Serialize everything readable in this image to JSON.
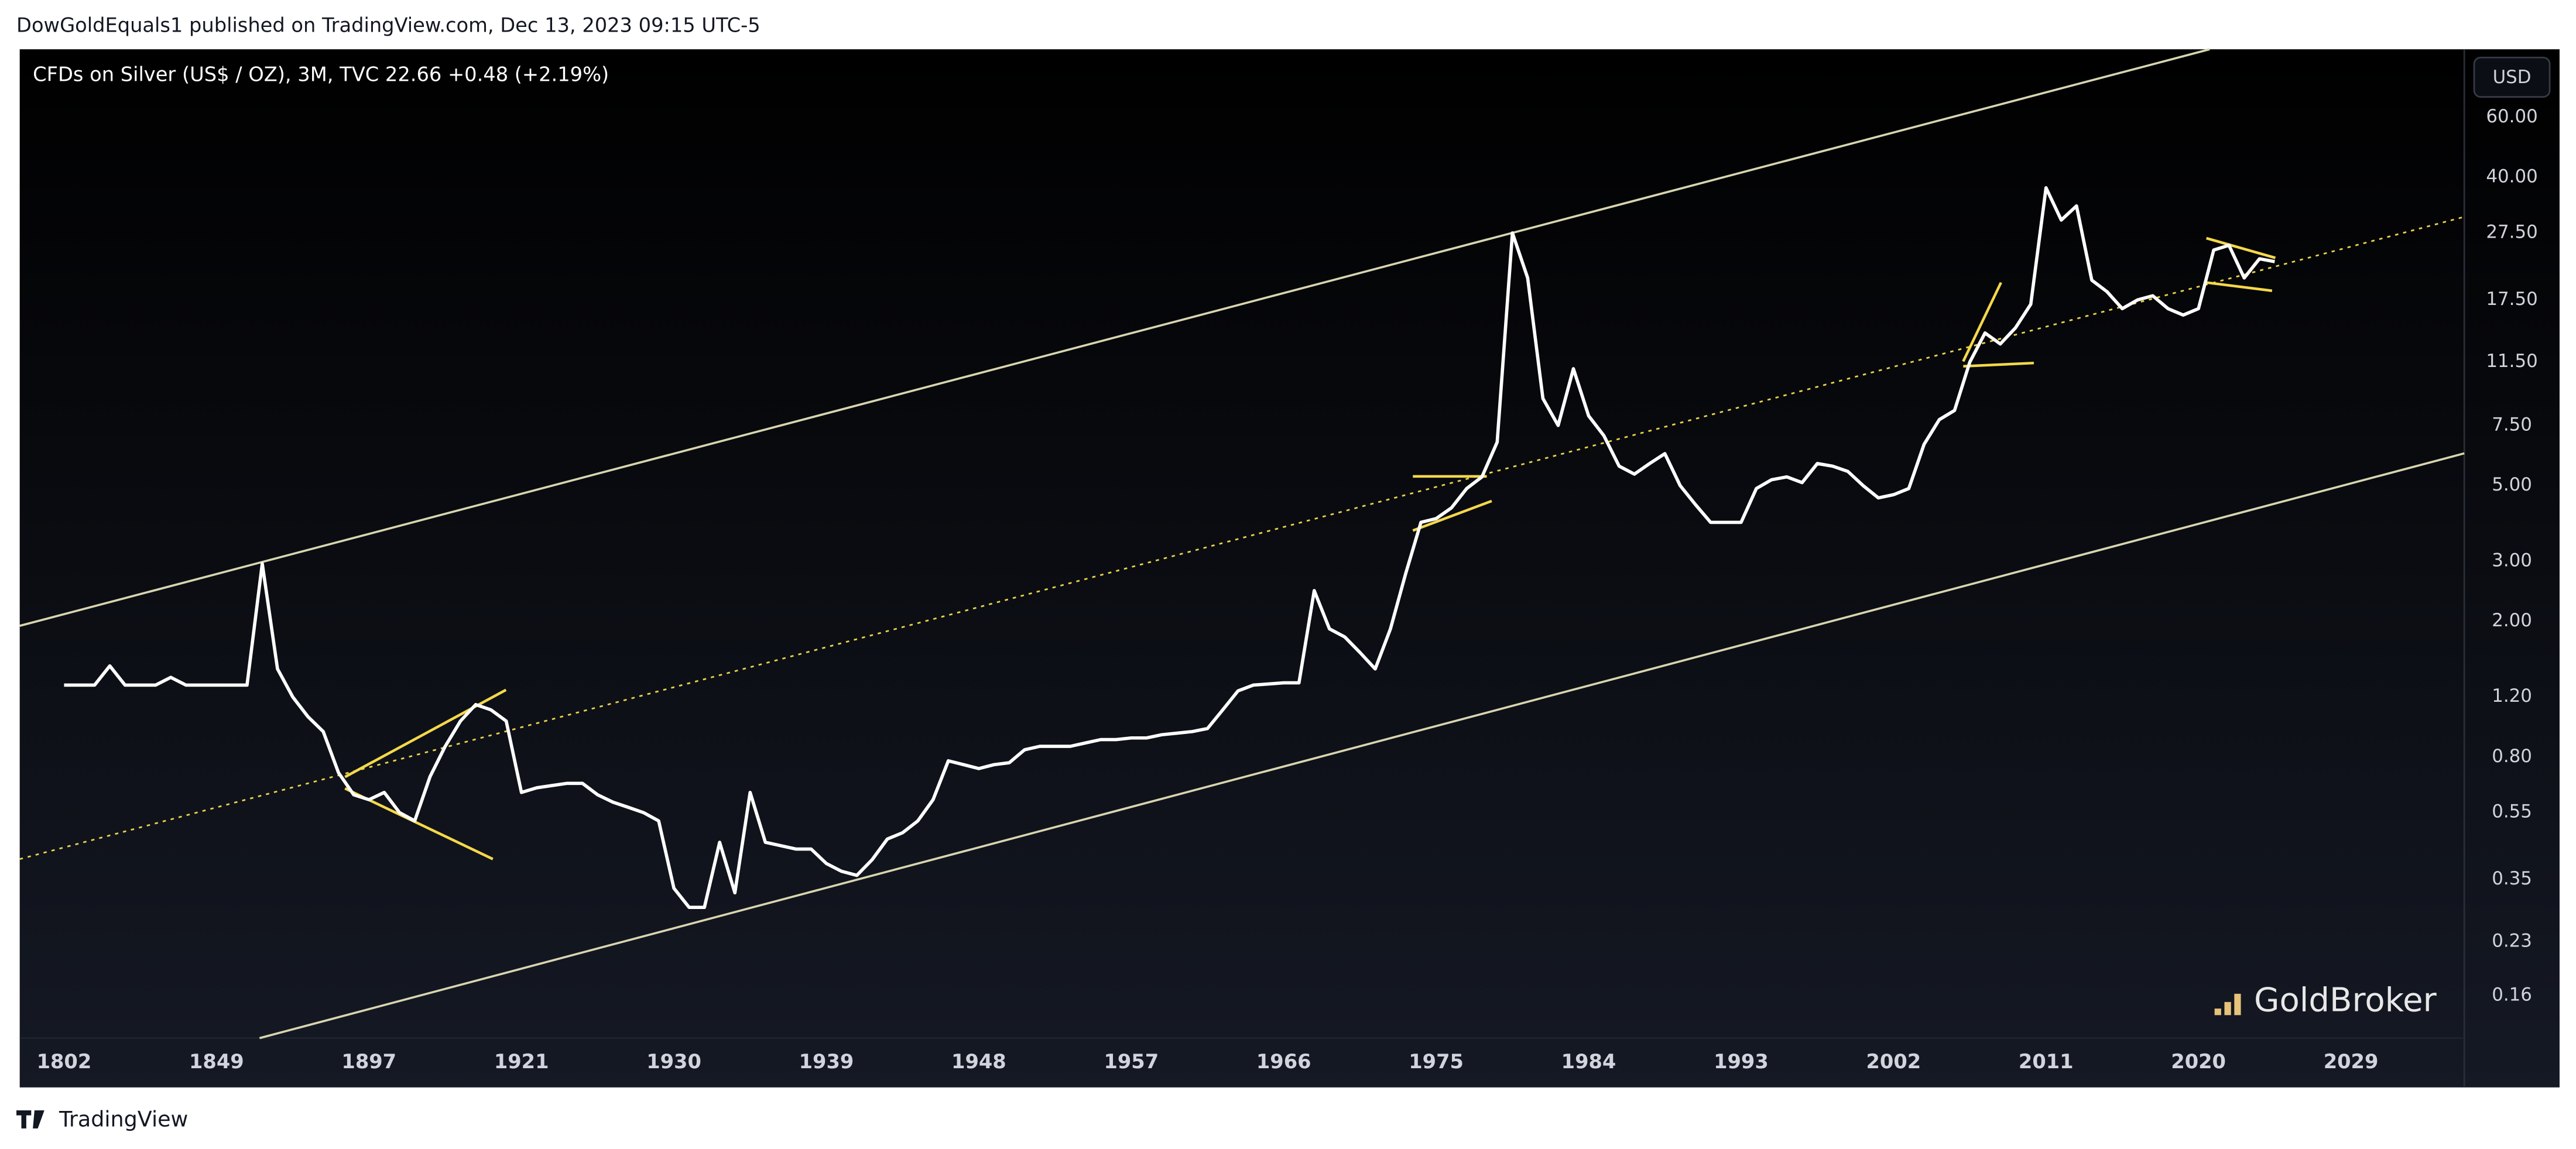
{
  "page": {
    "attribution": "DowGoldEquals1 published on TradingView.com, Dec 13, 2023 09:15 UTC-5",
    "symbol_line": "CFDs on Silver (US$ / OZ), 3M, TVC  22.66  +0.48 (+2.19%)",
    "currency": "USD",
    "watermark": "GoldBroker",
    "footer": "TradingView"
  },
  "chart_data": {
    "type": "line",
    "log_scale": true,
    "grid": false,
    "categories": [
      "1802",
      null,
      null,
      null,
      null,
      null,
      null,
      null,
      null,
      null,
      "1849",
      null,
      null,
      null,
      null,
      null,
      null,
      null,
      null,
      null,
      "1897",
      null,
      null,
      null,
      null,
      null,
      null,
      null,
      null,
      null,
      "1921",
      null,
      null,
      null,
      null,
      null,
      null,
      null,
      null,
      null,
      "1930",
      null,
      null,
      null,
      null,
      null,
      null,
      null,
      null,
      null,
      "1939",
      null,
      null,
      null,
      null,
      null,
      null,
      null,
      null,
      null,
      "1948",
      null,
      null,
      null,
      null,
      null,
      null,
      null,
      null,
      null,
      "1957",
      null,
      null,
      null,
      null,
      null,
      null,
      null,
      null,
      null,
      "1966",
      null,
      null,
      null,
      null,
      null,
      null,
      null,
      null,
      null,
      "1975",
      null,
      null,
      null,
      null,
      null,
      null,
      null,
      null,
      null,
      "1984",
      null,
      null,
      null,
      null,
      null,
      null,
      null,
      null,
      null,
      "1993",
      null,
      null,
      null,
      null,
      null,
      null,
      null,
      null,
      null,
      "2002",
      null,
      null,
      null,
      null,
      null,
      null,
      null,
      null,
      null,
      "2011",
      null,
      null,
      null,
      null,
      null,
      null,
      null,
      null,
      null,
      "2020",
      null,
      null,
      null,
      null,
      null,
      null,
      null,
      null,
      null,
      "2029",
      null,
      null,
      null,
      null,
      null,
      null,
      null
    ],
    "series": [
      {
        "name": "CFDs on Silver (US$ / OZ)",
        "color": "#ffffff",
        "values": [
          1.3,
          1.3,
          1.3,
          1.48,
          1.3,
          1.3,
          1.3,
          1.37,
          1.3,
          1.3,
          1.3,
          1.3,
          1.3,
          2.95,
          1.45,
          1.2,
          1.05,
          0.95,
          0.72,
          0.62,
          0.6,
          0.63,
          0.55,
          0.52,
          0.7,
          0.86,
          1.02,
          1.14,
          1.1,
          1.02,
          0.63,
          0.65,
          0.66,
          0.67,
          0.67,
          0.62,
          0.59,
          0.57,
          0.55,
          0.52,
          0.33,
          0.29,
          0.29,
          0.45,
          0.32,
          0.63,
          0.45,
          0.44,
          0.43,
          0.43,
          0.39,
          0.37,
          0.36,
          0.4,
          0.46,
          0.48,
          0.52,
          0.6,
          0.78,
          0.76,
          0.74,
          0.76,
          0.77,
          0.84,
          0.86,
          0.86,
          0.86,
          0.88,
          0.9,
          0.9,
          0.91,
          0.91,
          0.93,
          0.94,
          0.95,
          0.97,
          1.1,
          1.25,
          1.3,
          1.31,
          1.32,
          1.32,
          2.46,
          1.9,
          1.8,
          1.62,
          1.45,
          1.9,
          2.76,
          3.9,
          4.0,
          4.3,
          4.9,
          5.3,
          6.7,
          27.5,
          20.3,
          9.0,
          7.5,
          11.0,
          8.0,
          7.0,
          5.7,
          5.4,
          5.8,
          6.2,
          5.0,
          4.4,
          3.9,
          3.9,
          3.9,
          4.9,
          5.2,
          5.3,
          5.1,
          5.8,
          5.7,
          5.5,
          5.0,
          4.6,
          4.7,
          4.9,
          6.6,
          7.8,
          8.3,
          11.5,
          14.0,
          13.0,
          14.5,
          17.0,
          37.3,
          30,
          33,
          20,
          18.5,
          16.5,
          17.5,
          18.0,
          16.5,
          15.8,
          16.5,
          24.5,
          25.3,
          20.3,
          23.1,
          22.66,
          null,
          null,
          null,
          null,
          null,
          null,
          null,
          null,
          null,
          null,
          null,
          null
        ]
      }
    ],
    "ylim": [
      0.12,
      95
    ],
    "yticks": [
      {
        "value": 60,
        "label": "60.00"
      },
      {
        "value": 40,
        "label": "40.00"
      },
      {
        "value": 27.5,
        "label": "27.50"
      },
      {
        "value": 17.5,
        "label": "17.50"
      },
      {
        "value": 11.5,
        "label": "11.50"
      },
      {
        "value": 7.5,
        "label": "7.50"
      },
      {
        "value": 5,
        "label": "5.00"
      },
      {
        "value": 3,
        "label": "3.00"
      },
      {
        "value": 2,
        "label": "2.00"
      },
      {
        "value": 1.2,
        "label": "1.20"
      },
      {
        "value": 0.8,
        "label": "0.80"
      },
      {
        "value": 0.55,
        "label": "0.55"
      },
      {
        "value": 0.35,
        "label": "0.35"
      },
      {
        "value": 0.23,
        "label": "0.23"
      },
      {
        "value": 0.16,
        "label": "0.16"
      }
    ]
  }
}
